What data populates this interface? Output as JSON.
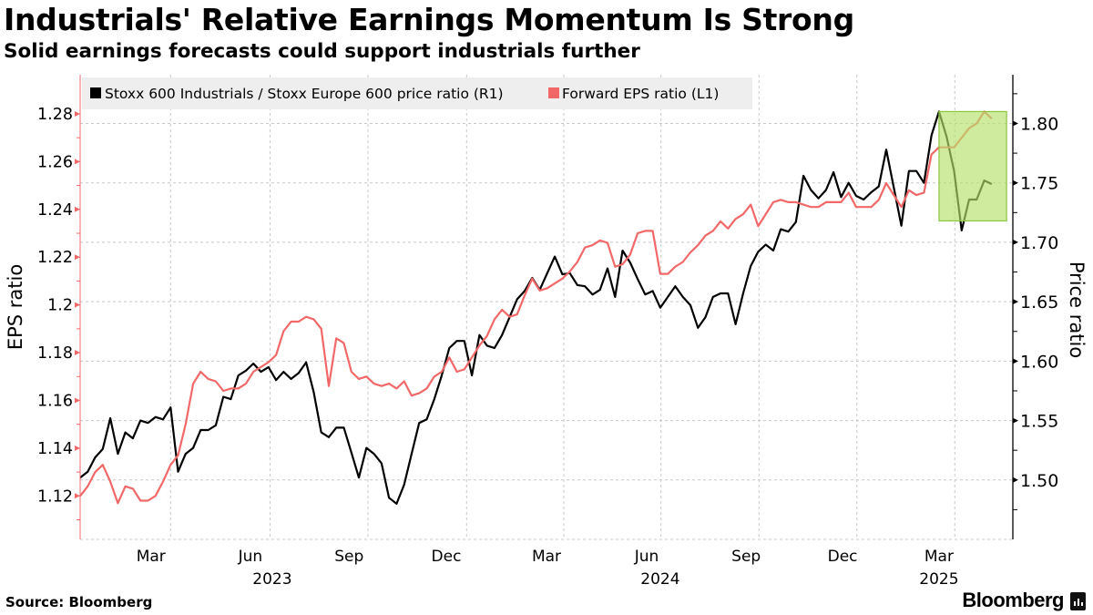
{
  "header": {
    "title": "Industrials' Relative Earnings Momentum Is Strong",
    "subtitle": "Solid earnings forecasts could support industrials further"
  },
  "footer": {
    "source": "Source: Bloomberg",
    "logo": "Bloomberg"
  },
  "colors": {
    "price_ratio": "#000000",
    "eps_ratio": "#f26868",
    "highlight_fill": "#b5e06a",
    "highlight_border": "#8cc63f",
    "legend_bg": "#eeeeee",
    "grid": "#c8c8c8"
  },
  "chart_data": {
    "type": "line",
    "title": "Industrials' Relative Earnings Momentum Is Strong",
    "subtitle": "Solid earnings forecasts could support industrials further",
    "x_start": "2023-01-06",
    "x_frequency": "weekly",
    "x_range_weeks": [
      0,
      123.8
    ],
    "x_ticks": [
      {
        "label": "Mar",
        "week": 9.4
      },
      {
        "label": "Jun",
        "week": 22.6
      },
      {
        "label": "Sep",
        "week": 35.7
      },
      {
        "label": "Dec",
        "week": 48.6
      },
      {
        "label": "Mar",
        "week": 61.9
      },
      {
        "label": "Jun",
        "week": 75.2
      },
      {
        "label": "Sep",
        "week": 88.4
      },
      {
        "label": "Dec",
        "week": 101.2
      },
      {
        "label": "Mar",
        "week": 114.0
      }
    ],
    "x_year_labels": [
      {
        "label": "2023",
        "week": 25.5
      },
      {
        "label": "2024",
        "week": 77.0
      },
      {
        "label": "2025",
        "week": 114.0
      }
    ],
    "x_gridlines_weeks": [
      12,
      25.2,
      38.2,
      51.3,
      64.2,
      77.1,
      90.1,
      103.1,
      116.1
    ],
    "ylabel_left": "EPS ratio",
    "ylabel_right": "Price ratio",
    "ylim_left": [
      1.1018,
      1.2964
    ],
    "ylim_right": [
      1.45,
      1.841
    ],
    "yticks_left": [
      "1.12",
      "1.14",
      "1.16",
      "1.18",
      "1.2",
      "1.22",
      "1.24",
      "1.26",
      "1.28"
    ],
    "yticks_right": [
      "1.50",
      "1.55",
      "1.60",
      "1.65",
      "1.70",
      "1.75",
      "1.80"
    ],
    "grid": true,
    "legend_position": "top-left",
    "series": [
      {
        "name": "Stoxx 600 Industrials / Stoxx Europe 600 price ratio (R1)",
        "axis": "right",
        "color_key": "price_ratio",
        "values": [
          1.502,
          1.507,
          1.519,
          1.526,
          1.552,
          1.522,
          1.54,
          1.535,
          1.55,
          1.548,
          1.553,
          1.551,
          1.561,
          1.507,
          1.522,
          1.527,
          1.542,
          1.542,
          1.546,
          1.57,
          1.568,
          1.588,
          1.592,
          1.598,
          1.591,
          1.595,
          1.584,
          1.591,
          1.585,
          1.59,
          1.599,
          1.574,
          1.54,
          1.536,
          1.544,
          1.544,
          1.523,
          1.502,
          1.527,
          1.522,
          1.514,
          1.485,
          1.48,
          1.496,
          1.522,
          1.548,
          1.551,
          1.568,
          1.588,
          1.611,
          1.617,
          1.617,
          1.588,
          1.622,
          1.613,
          1.611,
          1.622,
          1.637,
          1.652,
          1.659,
          1.67,
          1.66,
          1.674,
          1.688,
          1.673,
          1.674,
          1.664,
          1.663,
          1.656,
          1.66,
          1.678,
          1.654,
          1.693,
          1.683,
          1.669,
          1.656,
          1.659,
          1.645,
          1.654,
          1.663,
          1.654,
          1.647,
          1.628,
          1.637,
          1.654,
          1.657,
          1.657,
          1.631,
          1.657,
          1.68,
          1.692,
          1.698,
          1.693,
          1.711,
          1.709,
          1.717,
          1.756,
          1.744,
          1.737,
          1.744,
          1.759,
          1.738,
          1.75,
          1.739,
          1.736,
          1.742,
          1.747,
          1.778,
          1.746,
          1.714,
          1.76,
          1.76,
          1.75,
          1.79,
          1.81,
          1.789,
          1.76,
          1.71,
          1.736,
          1.736,
          1.752,
          1.749
        ]
      },
      {
        "name": "Forward EPS ratio (L1)",
        "axis": "left",
        "color_key": "eps_ratio",
        "values": [
          1.12,
          1.124,
          1.13,
          1.133,
          1.126,
          1.117,
          1.124,
          1.123,
          1.118,
          1.118,
          1.12,
          1.126,
          1.133,
          1.137,
          1.15,
          1.167,
          1.172,
          1.169,
          1.168,
          1.164,
          1.165,
          1.165,
          1.167,
          1.172,
          1.174,
          1.176,
          1.179,
          1.189,
          1.193,
          1.193,
          1.195,
          1.194,
          1.19,
          1.166,
          1.186,
          1.184,
          1.172,
          1.169,
          1.17,
          1.167,
          1.166,
          1.167,
          1.165,
          1.168,
          1.162,
          1.163,
          1.165,
          1.17,
          1.172,
          1.178,
          1.172,
          1.173,
          1.178,
          1.183,
          1.187,
          1.194,
          1.198,
          1.195,
          1.196,
          1.204,
          1.211,
          1.206,
          1.207,
          1.209,
          1.211,
          1.214,
          1.218,
          1.224,
          1.225,
          1.227,
          1.226,
          1.216,
          1.217,
          1.221,
          1.23,
          1.231,
          1.231,
          1.213,
          1.213,
          1.216,
          1.218,
          1.222,
          1.225,
          1.229,
          1.231,
          1.235,
          1.232,
          1.236,
          1.238,
          1.242,
          1.233,
          1.238,
          1.243,
          1.244,
          1.243,
          1.243,
          1.242,
          1.241,
          1.241,
          1.243,
          1.243,
          1.243,
          1.247,
          1.241,
          1.241,
          1.241,
          1.244,
          1.251,
          1.246,
          1.241,
          1.248,
          1.246,
          1.247,
          1.263,
          1.266,
          1.266,
          1.266,
          1.27,
          1.274,
          1.276,
          1.281,
          1.278
        ]
      }
    ],
    "annotations": [
      {
        "type": "highlight-box",
        "week_range": [
          114.0,
          122.0
        ],
        "right_axis_range": [
          1.718,
          1.81
        ]
      }
    ]
  }
}
